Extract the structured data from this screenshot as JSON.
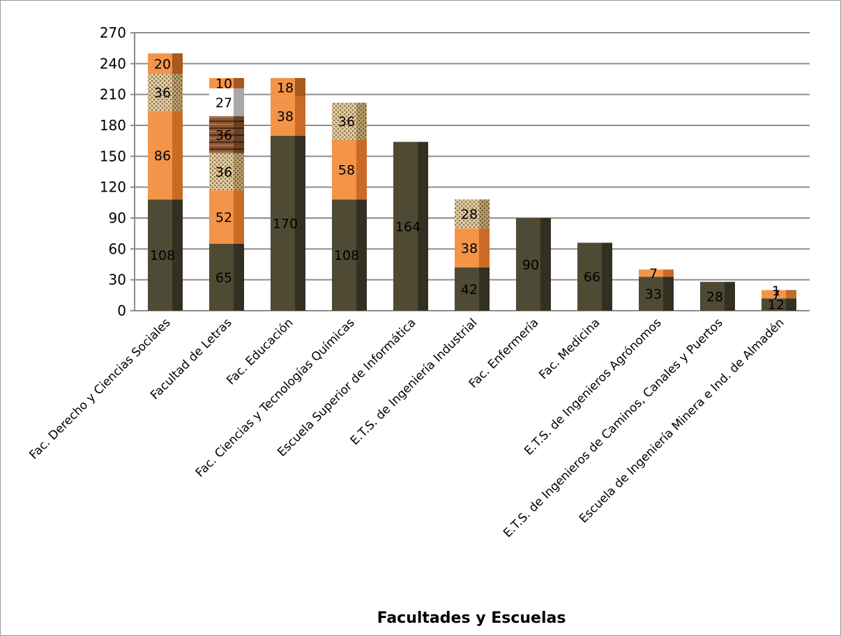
{
  "chart_data": {
    "type": "bar",
    "stacked": true,
    "title": "",
    "xlabel": "Facultades y Escuelas",
    "ylabel": "",
    "ylim": [
      0,
      270
    ],
    "yticks": [
      0,
      30,
      60,
      90,
      120,
      150,
      180,
      210,
      240,
      270
    ],
    "grid": true,
    "legend": "none",
    "categories": [
      "Fac. Derecho y Ciencias Sociales",
      "Facultad de Letras",
      "Fac. Educación",
      "Fac. Ciencias y Tecnologías Químicas",
      "Escuela Superior de Informática",
      "E.T.S. de Ingeniería Industrial",
      "Fac. Enfermería",
      "Fac. Medicina",
      "E.T.S. de Ingenieros Agrónomos",
      "E.T.S. de Ingenieros de Caminos, Canales y Puertos",
      "Escuela de Ingeniería Minera e Ind. de Almadén"
    ],
    "series": [
      {
        "key": "s1",
        "color": "#4f4a33",
        "values": [
          108,
          65,
          170,
          108,
          164,
          42,
          90,
          66,
          33,
          28,
          12
        ]
      },
      {
        "key": "s2",
        "color": "#f39449",
        "values": [
          86,
          52,
          38,
          58,
          null,
          38,
          null,
          null,
          7,
          null,
          7
        ]
      },
      {
        "key": "s3",
        "color": "#c9ae7c",
        "values": [
          36,
          36,
          null,
          36,
          null,
          28,
          null,
          null,
          null,
          null,
          null
        ]
      },
      {
        "key": "s4",
        "color": "#7a4a2a",
        "values": [
          null,
          36,
          null,
          null,
          null,
          null,
          null,
          null,
          null,
          null,
          null
        ]
      },
      {
        "key": "s5",
        "color": "#ffffff",
        "values": [
          null,
          27,
          null,
          null,
          null,
          null,
          null,
          null,
          null,
          null,
          null
        ]
      },
      {
        "key": "s6",
        "color": "#f39449",
        "values": [
          20,
          10,
          18,
          null,
          null,
          null,
          null,
          null,
          null,
          null,
          1
        ]
      }
    ]
  }
}
